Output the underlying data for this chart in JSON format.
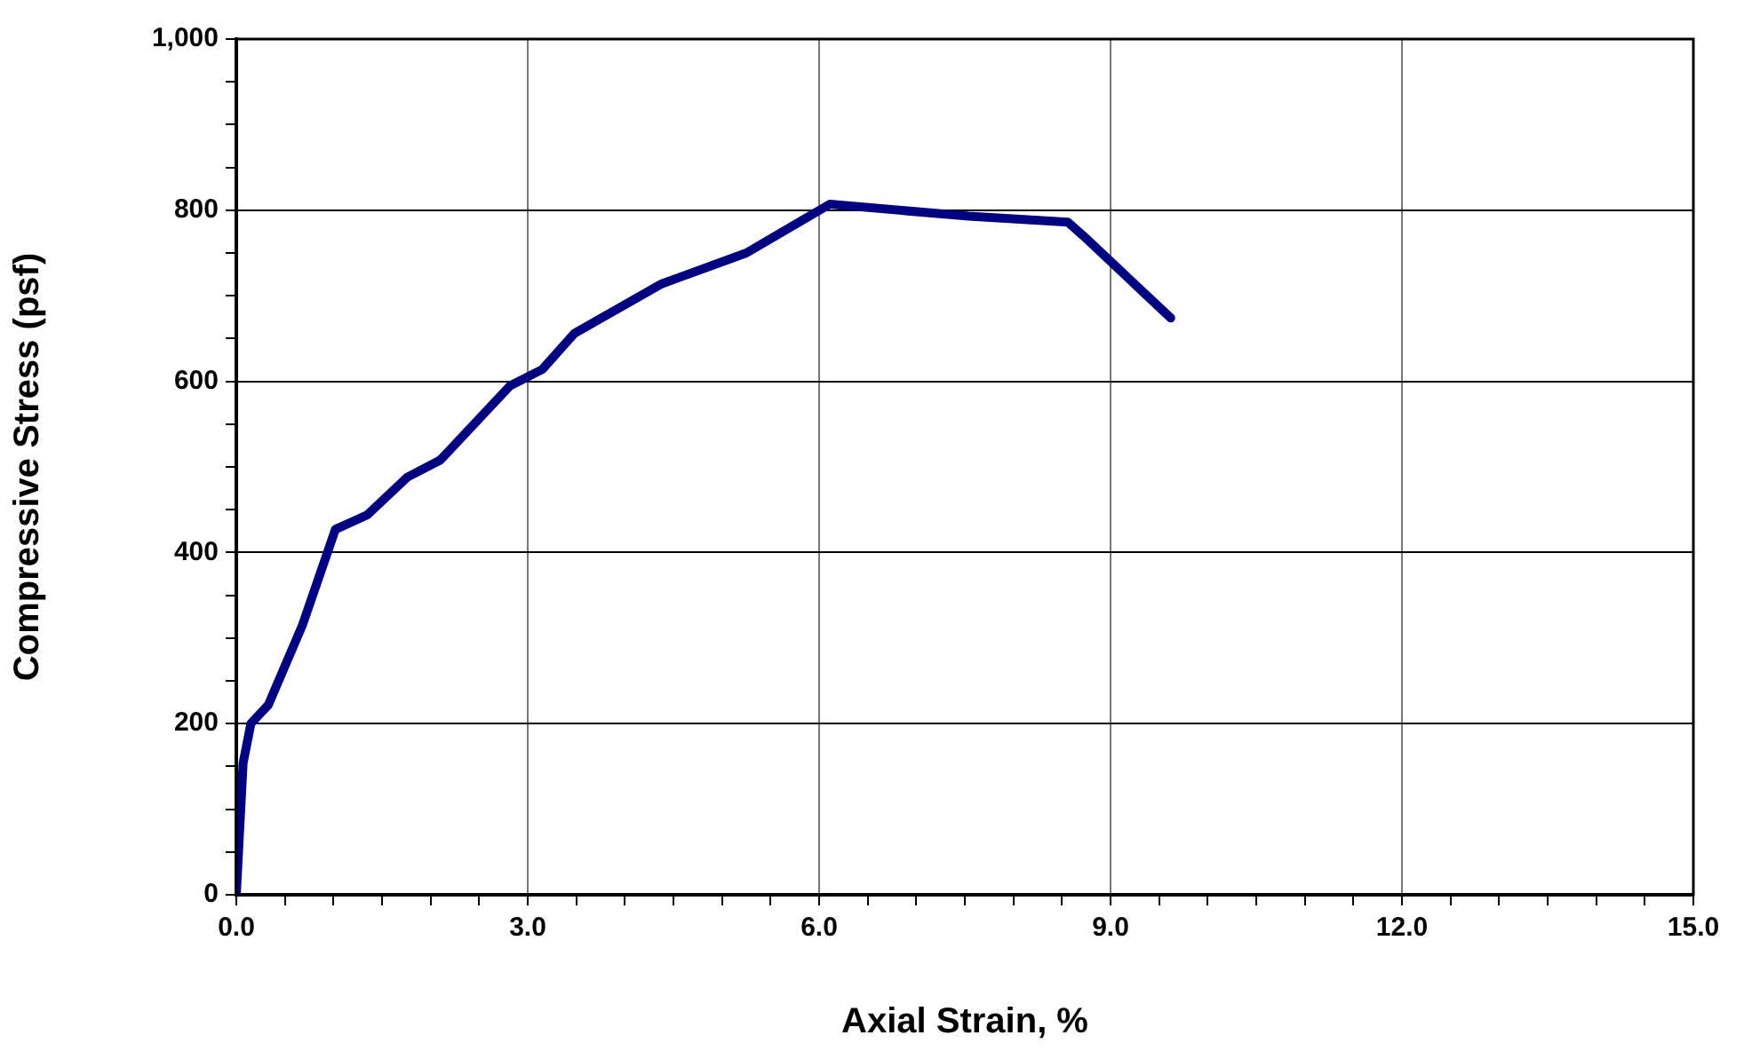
{
  "chart_data": {
    "type": "line",
    "xlabel": "Axial Strain, %",
    "ylabel": "Compressive Stress (psf)",
    "x": [
      0,
      0.07,
      0.15,
      0.33,
      0.68,
      1.02,
      1.35,
      1.76,
      2.1,
      2.82,
      3.15,
      3.48,
      4.38,
      5.25,
      6.11,
      7.54,
      8.56,
      8.72,
      9.62
    ],
    "series": [
      {
        "color": "#000080",
        "values": [
          0,
          154,
          200,
          222,
          315,
          427,
          444,
          488,
          508,
          595,
          614,
          656,
          714,
          750,
          807,
          793,
          786,
          770,
          674
        ]
      }
    ],
    "xlim": [
      0,
      15
    ],
    "ylim": [
      0,
      1000
    ],
    "xticks": [
      {
        "value": 0,
        "label": "0.0"
      },
      {
        "value": 0.5,
        "label": null
      },
      {
        "value": 1,
        "label": null
      },
      {
        "value": 1.5,
        "label": null
      },
      {
        "value": 2,
        "label": null
      },
      {
        "value": 2.5,
        "label": null
      },
      {
        "value": 3,
        "label": "3.0"
      },
      {
        "value": 3.5,
        "label": null
      },
      {
        "value": 4,
        "label": null
      },
      {
        "value": 4.5,
        "label": null
      },
      {
        "value": 5,
        "label": null
      },
      {
        "value": 5.5,
        "label": null
      },
      {
        "value": 6,
        "label": "6.0"
      },
      {
        "value": 6.5,
        "label": null
      },
      {
        "value": 7,
        "label": null
      },
      {
        "value": 7.5,
        "label": null
      },
      {
        "value": 8,
        "label": null
      },
      {
        "value": 8.5,
        "label": null
      },
      {
        "value": 9,
        "label": "9.0"
      },
      {
        "value": 9.5,
        "label": null
      },
      {
        "value": 10,
        "label": null
      },
      {
        "value": 10.5,
        "label": null
      },
      {
        "value": 11,
        "label": null
      },
      {
        "value": 11.5,
        "label": null
      },
      {
        "value": 12,
        "label": "12.0"
      },
      {
        "value": 12.5,
        "label": null
      },
      {
        "value": 13,
        "label": null
      },
      {
        "value": 13.5,
        "label": null
      },
      {
        "value": 14,
        "label": null
      },
      {
        "value": 14.5,
        "label": null
      },
      {
        "value": 15,
        "label": "15.0"
      }
    ],
    "yticks": [
      0,
      {
        "value": 50,
        "label": null
      },
      {
        "value": 100,
        "label": null
      },
      {
        "value": 150,
        "label": null
      },
      200,
      {
        "value": 250,
        "label": null
      },
      {
        "value": 300,
        "label": null
      },
      {
        "value": 350,
        "label": null
      },
      400,
      {
        "value": 450,
        "label": null
      },
      {
        "value": 500,
        "label": null
      },
      {
        "value": 550,
        "label": null
      },
      600,
      {
        "value": 650,
        "label": null
      },
      {
        "value": 700,
        "label": null
      },
      {
        "value": 750,
        "label": null
      },
      800,
      {
        "value": 850,
        "label": null
      },
      {
        "value": 900,
        "label": null
      },
      {
        "value": 950,
        "label": null
      },
      {
        "value": 1000,
        "label": "1,000"
      }
    ],
    "grid": true,
    "legend": false,
    "marker": "none",
    "line_style": "solid"
  }
}
